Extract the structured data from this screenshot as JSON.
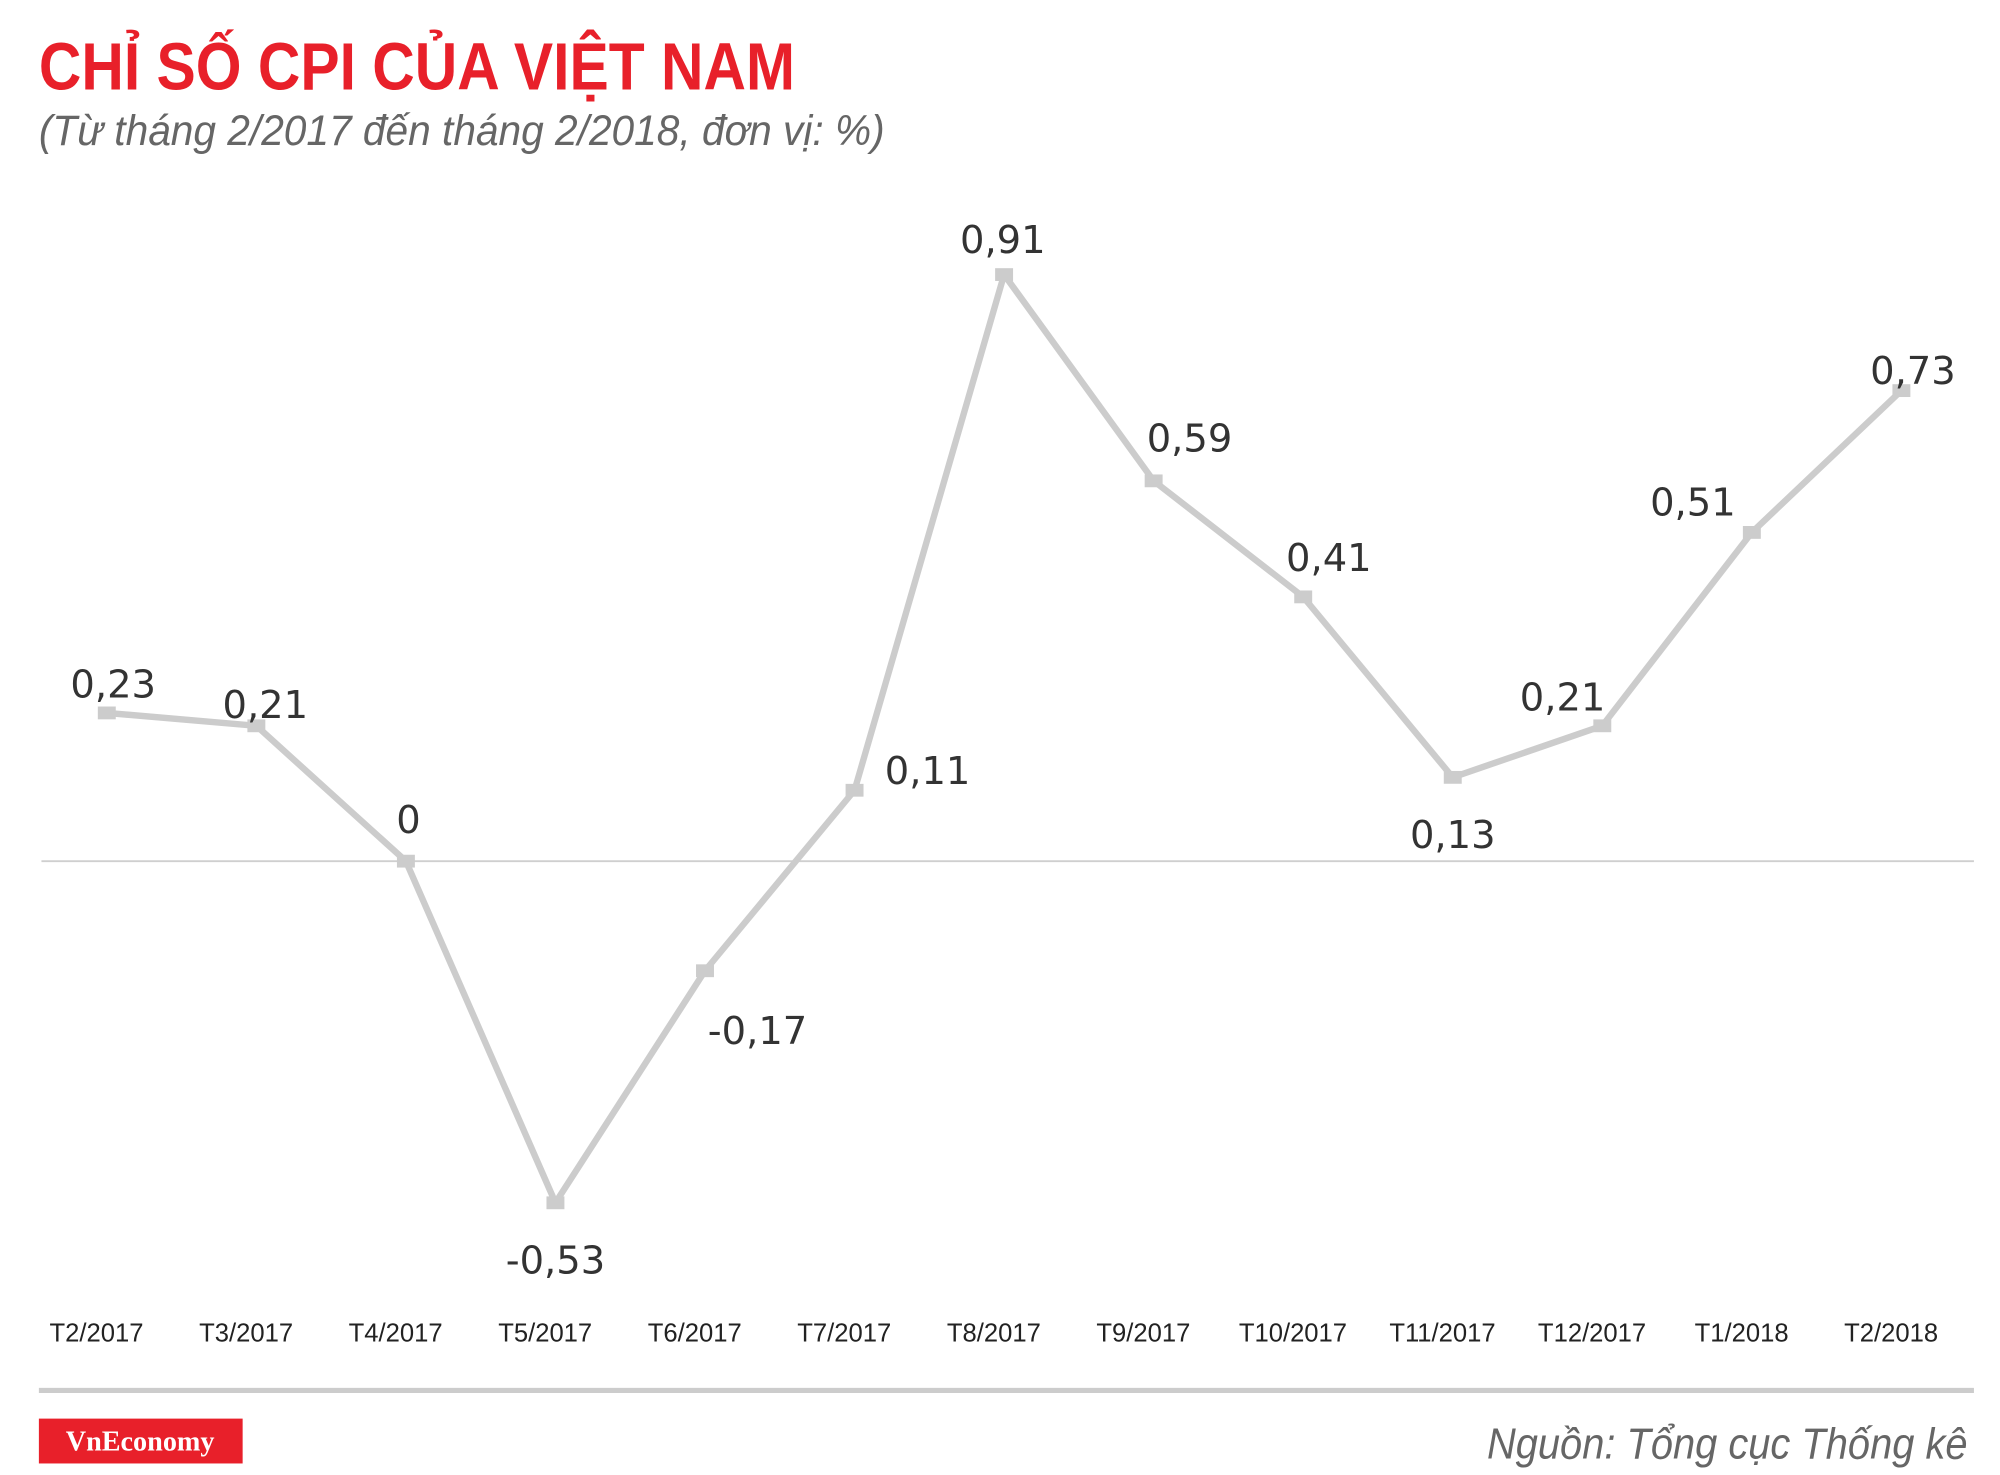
{
  "colors": {
    "title": "#e8202a",
    "line": "#cccccc",
    "logo_bg": "#e8202a"
  },
  "chart_data": {
    "type": "line",
    "title": "CHỈ SỐ CPI CỦA VIỆT NAM",
    "subtitle": "(Từ tháng 2/2017 đến tháng 2/2018, đơn vị: %)",
    "categories": [
      "T2/2017",
      "T3/2017",
      "T4/2017",
      "T5/2017",
      "T6/2017",
      "T7/2017",
      "T8/2017",
      "T9/2017",
      "T10/2017",
      "T11/2017",
      "T12/2017",
      "T1/2018",
      "T2/2018"
    ],
    "values": [
      0.23,
      0.21,
      0,
      -0.53,
      -0.17,
      0.11,
      0.91,
      0.59,
      0.41,
      0.13,
      0.21,
      0.51,
      0.73
    ],
    "labels": [
      "0,23",
      "0,21",
      "0",
      "-0,53",
      "-0,17",
      "0,11",
      "0,91",
      "0,59",
      "0,41",
      "0,13",
      "0,21",
      "0,51",
      "0,73"
    ],
    "xlabel": "",
    "ylabel": "",
    "ylim": [
      -0.6,
      1.0
    ],
    "grid": false,
    "legend": "none"
  },
  "footer": {
    "logo": "VnEconomy",
    "source": "Nguồn: Tổng cục Thống kê"
  }
}
